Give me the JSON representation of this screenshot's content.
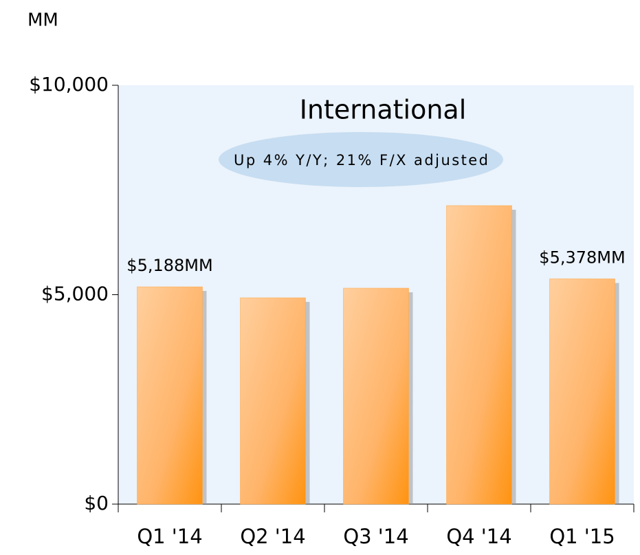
{
  "chart_data": {
    "type": "bar",
    "title": "International",
    "annotation": "Up 4% Y/Y; 21% F/X adjusted",
    "unit_label": "MM",
    "categories": [
      "Q1 '14",
      "Q2 '14",
      "Q3 '14",
      "Q4 '14",
      "Q1 '15"
    ],
    "values": [
      5188,
      4926,
      5156,
      7127,
      5378
    ],
    "value_labels": [
      "$5,188MM",
      null,
      null,
      null,
      "$5,378MM"
    ],
    "color": "#ffa53d",
    "ylim": [
      0,
      10000
    ],
    "yticks": [
      {
        "value": 0,
        "label": "$0"
      },
      {
        "value": 5000,
        "label": "$5,000"
      },
      {
        "value": 10000,
        "label": "$10,000"
      }
    ],
    "grid": false
  }
}
